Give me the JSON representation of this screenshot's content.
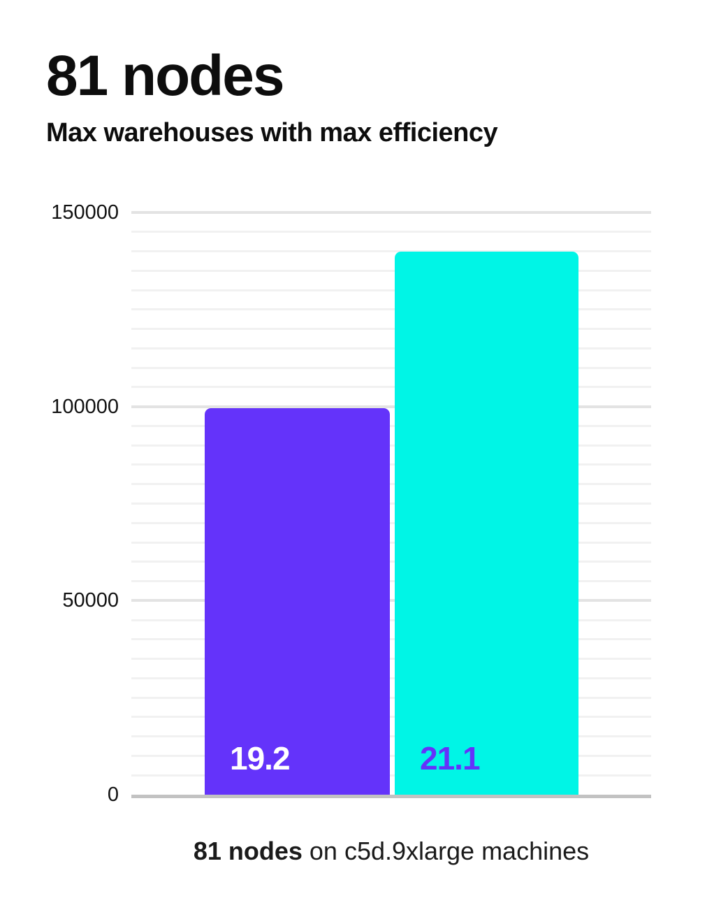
{
  "chart_data": {
    "type": "bar",
    "title": "81 nodes",
    "subtitle": "Max warehouses with max efficiency",
    "categories": [
      "19.2",
      "21.1"
    ],
    "series": [
      {
        "name": "19.2",
        "value": 99500,
        "bar_color": "#6433fa",
        "label_color": "#ffffff"
      },
      {
        "name": "21.1",
        "value": 140000,
        "bar_color": "#00f5e6",
        "label_color": "#6433fa"
      }
    ],
    "xlabel": "",
    "ylabel": "",
    "ylim": [
      0,
      150000
    ],
    "yticks": [
      {
        "value": 0,
        "label": "0"
      },
      {
        "value": 50000,
        "label": "50000"
      },
      {
        "value": 100000,
        "label": "100000"
      },
      {
        "value": 150000,
        "label": "150000"
      }
    ],
    "minor_grid_step": 5000,
    "major_grid_step": 50000,
    "grid": true,
    "legend_position": "none",
    "caption_bold": "81 nodes",
    "caption_rest": " on c5d.9xlarge machines"
  },
  "colors": {
    "background": "#ffffff",
    "title_text": "#0d0d0d",
    "tick_text": "#111111",
    "minor_grid": "#f1f1f1",
    "major_grid": "#e3e3e3",
    "axis_line": "#c2c2c2",
    "bar_purple": "#6433fa",
    "bar_cyan": "#00f5e6"
  }
}
